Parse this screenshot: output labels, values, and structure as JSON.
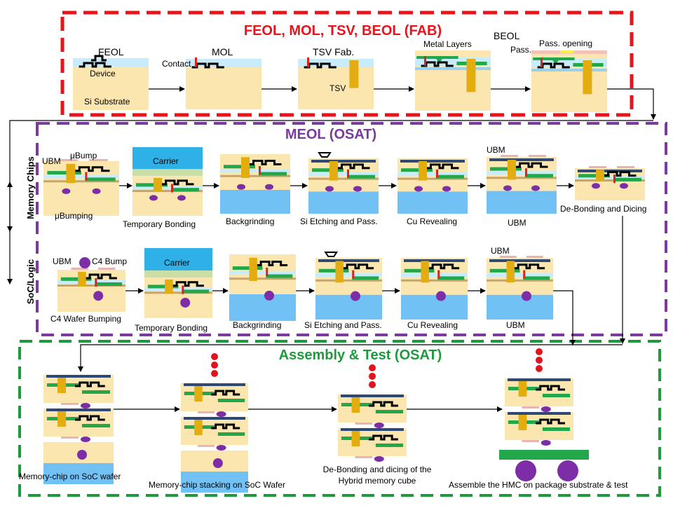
{
  "colors": {
    "fab": "#e8141b",
    "meol": "#7a3a9e",
    "assembly": "#1c9a3c",
    "silicon": "#fbe6b0",
    "blue": "#71c1f5",
    "lightblue": "#c8ecfb",
    "green": "#22a84a",
    "gold": "#e3ad12",
    "red": "#d9261c",
    "navy": "#2e4a74",
    "pink": "#e9b4b2",
    "purple": "#7d2da6",
    "carrier": "#2fb1e7",
    "bond": "#c9dfa7"
  },
  "sections": {
    "fab_title": "FEOL, MOL, TSV, BEOL (FAB)",
    "meol_title": "MEOL (OSAT)",
    "assembly_title": "Assembly & Test (OSAT)"
  },
  "fab": {
    "feol": "FEOL",
    "device": "Device",
    "substrate": "Si Substrate",
    "mol": "MOL",
    "contact": "Contact",
    "tsv_fab": "TSV Fab.",
    "tsv": "TSV",
    "metal_layers": "Metal Layers",
    "beol": "BEOL",
    "pass": "Pass.",
    "pass_opening": "Pass. opening"
  },
  "meol": {
    "memory_chips": "Memory Chips",
    "soc_logic": "SoC/Logic",
    "mem": {
      "ubm": "UBM",
      "ubump": "μBump",
      "ubumping": "μBumping",
      "carrier": "Carrier",
      "temp_bonding": "Temporary Bonding",
      "backgrinding": "Backgrinding",
      "si_etch": "Si Etching and Pass.",
      "cu_reveal": "Cu Revealing",
      "ubm_top": "UBM",
      "ubm_bottom": "UBM",
      "debond": "De-Bonding and Dicing"
    },
    "soc": {
      "ubm": "UBM",
      "c4_bump": "C4 Bump",
      "c4_wafer": "C4 Wafer Bumping",
      "carrier": "Carrier",
      "temp_bonding": "Temporary Bonding",
      "backgrinding": "Backgrinding",
      "si_etch": "Si Etching and Pass.",
      "cu_reveal": "Cu Revealing",
      "ubm_top": "UBM",
      "ubm_bottom": "UBM"
    }
  },
  "assembly": {
    "step1": "Memory-chip on SoC wafer",
    "step2": "Memory-chip stacking on SoC Wafer",
    "step3_line1": "De-Bonding and dicing of the",
    "step3_line2": "Hybrid memory cube",
    "step4": "Assemble the HMC on package substrate & test"
  }
}
